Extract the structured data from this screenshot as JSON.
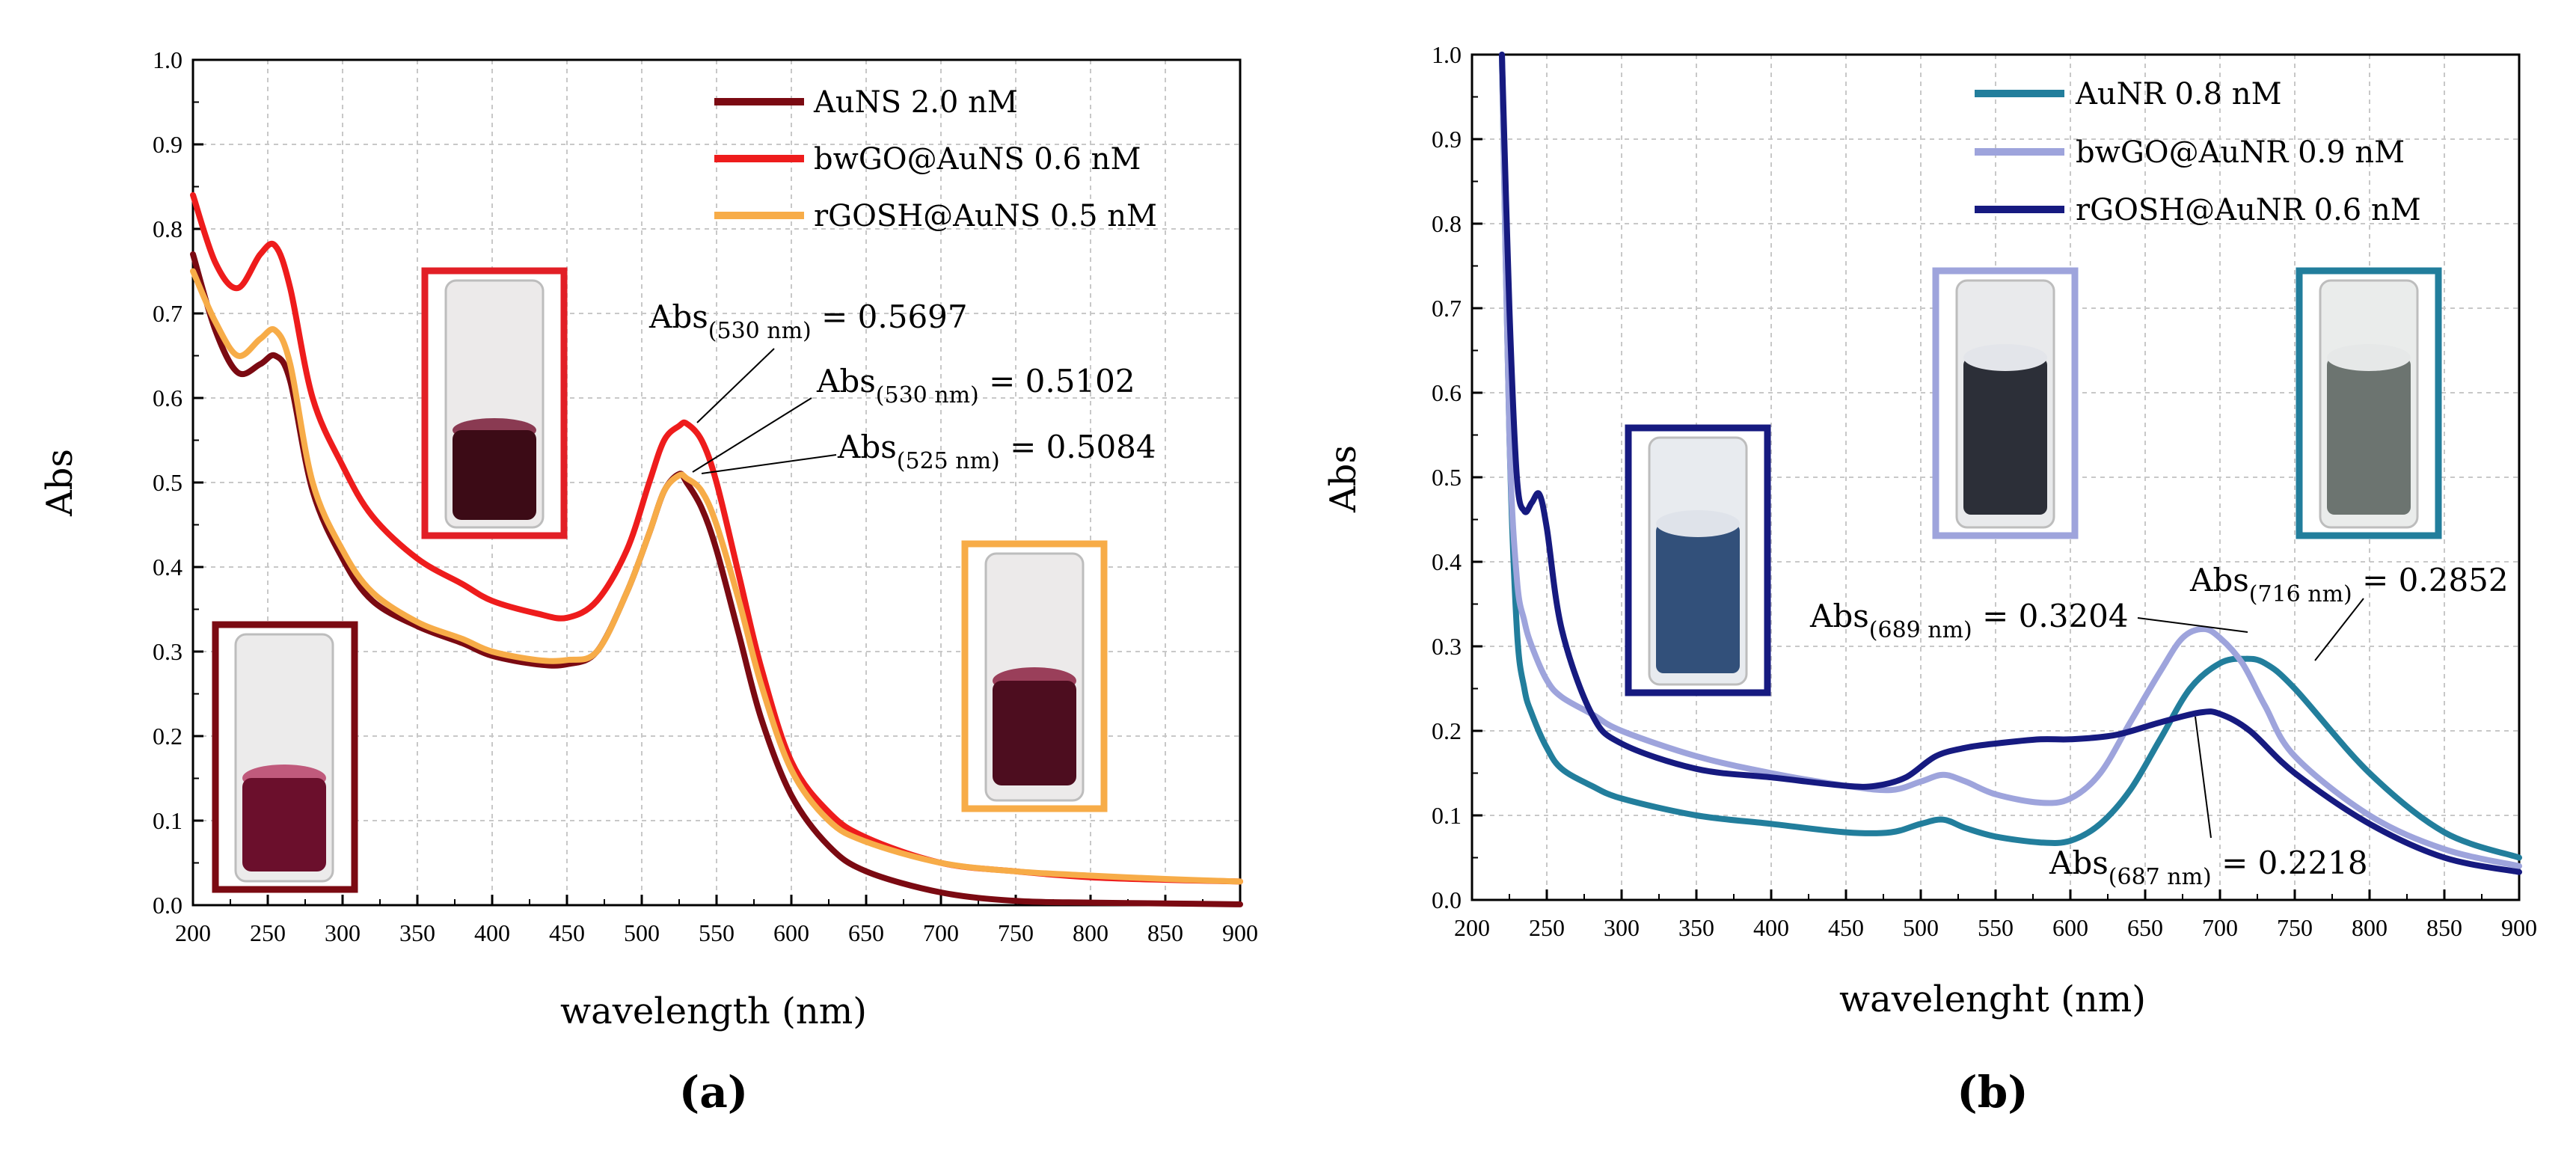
{
  "chart_data": [
    {
      "id": "a",
      "type": "line",
      "panel_label": "(a)",
      "xlabel": "wavelength (nm)",
      "ylabel": "Abs",
      "xlim": [
        200,
        900
      ],
      "ylim": [
        0.0,
        1.0
      ],
      "xticks": [
        200,
        250,
        300,
        350,
        400,
        450,
        500,
        550,
        600,
        650,
        700,
        750,
        800,
        850,
        900
      ],
      "yticks": [
        0.0,
        0.1,
        0.2,
        0.3,
        0.4,
        0.5,
        0.6,
        0.7,
        0.8,
        0.9,
        1.0
      ],
      "ytick_labels": [
        "0.0",
        "0.1",
        "0.2",
        "0.3",
        "0.4",
        "0.5",
        "0.6",
        "0.7",
        "0.8",
        "0.9",
        "1.0"
      ],
      "grid": true,
      "legend_position": "top-right",
      "series": [
        {
          "name": "AuNS 2.0 nM",
          "color": "#7b0a12",
          "x": [
            200,
            215,
            230,
            245,
            255,
            265,
            280,
            300,
            320,
            350,
            380,
            400,
            430,
            450,
            470,
            490,
            505,
            515,
            525,
            530,
            540,
            550,
            565,
            580,
            600,
            625,
            650,
            700,
            750,
            800,
            850,
            900
          ],
          "y": [
            0.77,
            0.68,
            0.63,
            0.64,
            0.65,
            0.62,
            0.49,
            0.41,
            0.36,
            0.33,
            0.31,
            0.295,
            0.285,
            0.285,
            0.3,
            0.37,
            0.44,
            0.49,
            0.51,
            0.5,
            0.47,
            0.42,
            0.32,
            0.22,
            0.13,
            0.07,
            0.04,
            0.015,
            0.005,
            0.003,
            0.002,
            0.001
          ]
        },
        {
          "name": "bwGO@AuNS 0.6 nM",
          "color": "#ee1c1c",
          "x": [
            200,
            215,
            230,
            245,
            255,
            265,
            280,
            300,
            320,
            350,
            380,
            400,
            430,
            450,
            470,
            490,
            505,
            515,
            525,
            530,
            540,
            550,
            565,
            580,
            600,
            625,
            650,
            700,
            750,
            800,
            850,
            900
          ],
          "y": [
            0.84,
            0.76,
            0.73,
            0.77,
            0.78,
            0.73,
            0.6,
            0.52,
            0.46,
            0.41,
            0.38,
            0.36,
            0.345,
            0.34,
            0.36,
            0.42,
            0.5,
            0.55,
            0.567,
            0.5697,
            0.55,
            0.5,
            0.39,
            0.28,
            0.17,
            0.11,
            0.08,
            0.05,
            0.04,
            0.033,
            0.03,
            0.028
          ]
        },
        {
          "name": "rGOSH@AuNS 0.5 nM",
          "color": "#f7ac48",
          "x": [
            200,
            215,
            230,
            245,
            255,
            265,
            280,
            300,
            320,
            350,
            380,
            400,
            430,
            450,
            470,
            490,
            505,
            515,
            525,
            530,
            540,
            550,
            565,
            580,
            600,
            625,
            650,
            700,
            750,
            800,
            850,
            900
          ],
          "y": [
            0.75,
            0.69,
            0.65,
            0.67,
            0.68,
            0.64,
            0.5,
            0.42,
            0.37,
            0.335,
            0.315,
            0.3,
            0.29,
            0.29,
            0.3,
            0.37,
            0.44,
            0.49,
            0.5084,
            0.505,
            0.49,
            0.45,
            0.36,
            0.26,
            0.16,
            0.1,
            0.075,
            0.05,
            0.04,
            0.035,
            0.031,
            0.028
          ]
        }
      ],
      "annotations": [
        {
          "main": "Abs",
          "sub": "(530 nm)",
          "rest": " = 0.5697"
        },
        {
          "main": "Abs",
          "sub": "(530 nm)",
          "rest": " = 0.5102"
        },
        {
          "main": "Abs",
          "sub": "(525 nm)",
          "rest": " = 0.5084"
        }
      ]
    },
    {
      "id": "b",
      "type": "line",
      "panel_label": "(b)",
      "xlabel": "wavelenght (nm)",
      "ylabel": "Abs",
      "xlim": [
        200,
        900
      ],
      "ylim": [
        0.0,
        1.0
      ],
      "xticks": [
        200,
        250,
        300,
        350,
        400,
        450,
        500,
        550,
        600,
        650,
        700,
        750,
        800,
        850,
        900
      ],
      "yticks": [
        0.0,
        0.1,
        0.2,
        0.3,
        0.4,
        0.5,
        0.6,
        0.7,
        0.8,
        0.9,
        1.0
      ],
      "ytick_labels": [
        "0.0",
        "0.1",
        "0.2",
        "0.3",
        "0.4",
        "0.5",
        "0.6",
        "0.7",
        "0.8",
        "0.9",
        "1.0"
      ],
      "grid": true,
      "legend_position": "top-right",
      "series": [
        {
          "name": "AuNR 0.8 nM",
          "color": "#227e9c",
          "x": [
            220,
            225,
            230,
            235,
            240,
            250,
            260,
            280,
            300,
            350,
            400,
            450,
            480,
            500,
            515,
            530,
            550,
            580,
            600,
            620,
            640,
            660,
            680,
            700,
            716,
            730,
            750,
            800,
            850,
            900
          ],
          "y": [
            1.0,
            0.55,
            0.32,
            0.25,
            0.22,
            0.18,
            0.155,
            0.135,
            0.12,
            0.1,
            0.09,
            0.08,
            0.08,
            0.09,
            0.095,
            0.085,
            0.075,
            0.068,
            0.07,
            0.09,
            0.13,
            0.19,
            0.25,
            0.28,
            0.2852,
            0.28,
            0.25,
            0.15,
            0.08,
            0.05
          ]
        },
        {
          "name": "bwGO@AuNR 0.9 nM",
          "color": "#9ea4dc",
          "x": [
            220,
            225,
            230,
            235,
            240,
            250,
            260,
            280,
            300,
            350,
            400,
            450,
            480,
            500,
            515,
            530,
            550,
            580,
            600,
            620,
            640,
            660,
            675,
            689,
            700,
            715,
            730,
            750,
            800,
            850,
            900
          ],
          "y": [
            1.0,
            0.55,
            0.38,
            0.33,
            0.3,
            0.26,
            0.24,
            0.22,
            0.2,
            0.17,
            0.15,
            0.135,
            0.13,
            0.14,
            0.148,
            0.14,
            0.125,
            0.115,
            0.12,
            0.15,
            0.21,
            0.27,
            0.31,
            0.3204,
            0.31,
            0.28,
            0.23,
            0.17,
            0.1,
            0.06,
            0.04
          ]
        },
        {
          "name": "rGOSH@AuNR 0.6 nM",
          "color": "#161a80",
          "x": [
            220,
            225,
            230,
            235,
            240,
            245,
            250,
            260,
            280,
            300,
            350,
            400,
            450,
            470,
            490,
            510,
            530,
            550,
            580,
            600,
            630,
            660,
            687,
            700,
            720,
            750,
            800,
            850,
            900
          ],
          "y": [
            1.0,
            0.7,
            0.5,
            0.46,
            0.47,
            0.48,
            0.44,
            0.32,
            0.22,
            0.185,
            0.155,
            0.145,
            0.135,
            0.135,
            0.145,
            0.17,
            0.18,
            0.185,
            0.19,
            0.19,
            0.195,
            0.21,
            0.2218,
            0.22,
            0.2,
            0.15,
            0.09,
            0.05,
            0.033
          ]
        }
      ],
      "annotations": [
        {
          "main": "Abs",
          "sub": "(689 nm)",
          "rest": " = 0.3204"
        },
        {
          "main": "Abs",
          "sub": "(716 nm)",
          "rest": " = 0.2852"
        },
        {
          "main": "Abs",
          "sub": "(687 nm)",
          "rest": " = 0.2218"
        }
      ]
    }
  ]
}
